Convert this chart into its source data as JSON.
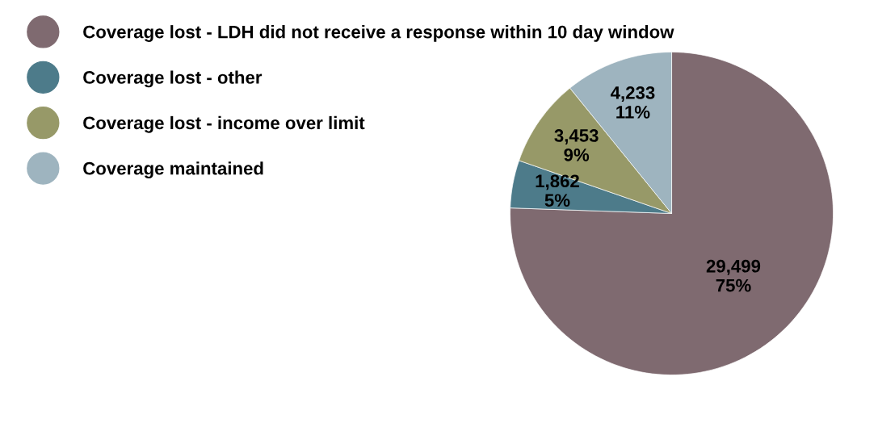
{
  "chart_data": {
    "type": "pie",
    "categories": [
      "Coverage lost - LDH did not receive a response within 10 day window",
      "Coverage lost - other",
      "Coverage lost - income over limit",
      "Coverage maintained"
    ],
    "values": [
      29499,
      1862,
      3453,
      4233
    ],
    "value_labels": [
      "29,499\n75%",
      "1,862\n5%",
      "3,453\n9%",
      "4,233\n11%"
    ],
    "colors": [
      "#7f6a70",
      "#4d7b8a",
      "#979968",
      "#9eb4bf"
    ],
    "legend": "left"
  }
}
